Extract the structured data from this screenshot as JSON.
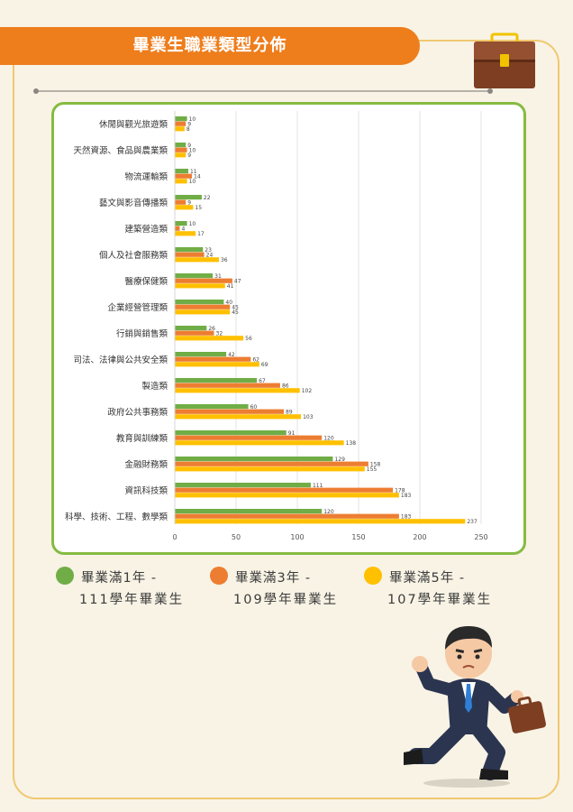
{
  "header": {
    "title": "畢業生職業類型分佈"
  },
  "colors": {
    "series1": "#70ad47",
    "series2": "#ed7d31",
    "series3": "#ffc000",
    "banner": "#ee7d1c",
    "frame": "#f0c871",
    "chart_border": "#86bb42"
  },
  "icons": {
    "top": "briefcase-icon",
    "bottom": "running-businessman-illustration"
  },
  "legend": [
    {
      "line1": "畢業滿1年 -",
      "line2": "111學年畢業生"
    },
    {
      "line1": "畢業滿3年 -",
      "line2": "109學年畢業生"
    },
    {
      "line1": "畢業滿5年 -",
      "line2": "107學年畢業生"
    }
  ],
  "chart_data": {
    "type": "bar",
    "orientation": "horizontal",
    "categories": [
      "休閒與觀光旅遊類",
      "天然資源、食品與農業類",
      "物流運輸類",
      "藝文與影音傳播類",
      "建築營造類",
      "個人及社會服務類",
      "醫療保健類",
      "企業經營管理類",
      "行銷與銷售類",
      "司法、法律與公共安全類",
      "製造類",
      "政府公共事務類",
      "教育與訓練類",
      "金融財務類",
      "資訊科技類",
      "科學、技術、工程、數學類"
    ],
    "series": [
      {
        "name": "畢業滿1年 - 111學年畢業生",
        "values": [
          10,
          9,
          11,
          22,
          10,
          23,
          31,
          40,
          26,
          42,
          67,
          60,
          91,
          129,
          111,
          120
        ]
      },
      {
        "name": "畢業滿3年 - 109學年畢業生",
        "values": [
          9,
          10,
          14,
          9,
          4,
          24,
          47,
          45,
          32,
          62,
          86,
          89,
          120,
          158,
          178,
          183
        ]
      },
      {
        "name": "畢業滿5年 - 107學年畢業生",
        "values": [
          8,
          9,
          10,
          15,
          17,
          36,
          41,
          45,
          56,
          69,
          102,
          103,
          138,
          155,
          183,
          237
        ]
      }
    ],
    "xlim": [
      0,
      250
    ],
    "xticks": [
      0,
      50,
      100,
      150,
      200,
      250
    ],
    "grid": true,
    "data_labels": true,
    "legend_position": "bottom"
  }
}
